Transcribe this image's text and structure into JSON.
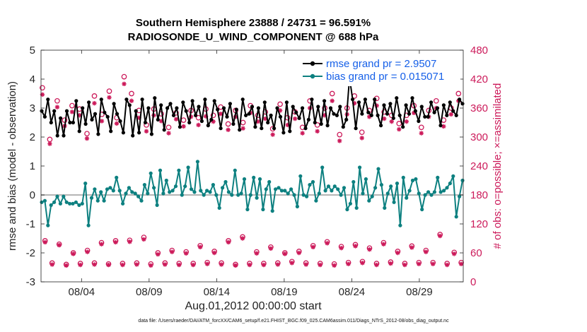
{
  "title_line1": "Southern Hemisphere 23888 / 24731 = 96.591%",
  "title_line2": "RADIOSONDE_U_WIND_COMPONENT @ 688 hPa",
  "xlabel": "Aug.01,2012 00:00:00 start",
  "footnote": "data file: /Users/raeder/DAI/ATM_forcXX/CAM6_setup/f.e21.FHIST_BGC.f09_025.CAM6assim.011/Diags_NTrS_2012-08/obs_diag_output.nc",
  "colors": {
    "rmse": "#000000",
    "bias": "#0d8080",
    "obs": "#cc1a5a",
    "zero_line": "#b5b5b5",
    "legend_text": "#1660e8"
  },
  "chart_data": {
    "type": "line",
    "ylabel_left": "rmse and bias (model - observation)",
    "ylabel_right": "# of obs: o=possible; ×=assimilated",
    "ylim_left": [
      -3,
      5
    ],
    "ylim_right": [
      0,
      480
    ],
    "yticks_left": [
      "-3",
      "-2",
      "-1",
      "0",
      "1",
      "2",
      "3",
      "4",
      "5"
    ],
    "yticks_right": [
      "0",
      "60",
      "120",
      "180",
      "240",
      "300",
      "360",
      "420",
      "480"
    ],
    "xlim": [
      0,
      31.25
    ],
    "x_tick_positions": [
      3,
      8,
      13,
      18,
      23,
      28
    ],
    "x_tick_labels": [
      "08/04",
      "08/09",
      "08/14",
      "08/19",
      "08/24",
      "08/29"
    ],
    "legend": [
      {
        "name": "rmse grand pr = 2.9507",
        "series": "rmse"
      },
      {
        "name": "bias grand pr = 0.015071",
        "series": "bias"
      }
    ],
    "rmse": [
      2.9,
      2.7,
      3.3,
      2.5,
      2.9,
      2.05,
      2.65,
      2.05,
      2.9,
      2.5,
      2.5,
      3.25,
      2.2,
      3.0,
      2.45,
      3.2,
      2.6,
      2.8,
      2.1,
      3.3,
      2.85,
      2.7,
      2.2,
      3.15,
      2.8,
      2.55,
      2.15,
      3.3,
      3.1,
      2.05,
      2.9,
      2.15,
      3.3,
      2.5,
      3.0,
      2.1,
      3.35,
      2.6,
      3.1,
      2.25,
      3.0,
      3.15,
      2.75,
      3.0,
      2.35,
      3.2,
      2.9,
      2.5,
      3.25,
      2.75,
      3.05,
      2.55,
      3.3,
      2.4,
      2.6,
      3.25,
      2.95,
      2.3,
      3.0,
      2.7,
      3.15,
      2.45,
      2.95,
      2.25,
      3.3,
      2.75,
      2.8,
      3.05,
      2.35,
      3.0,
      2.3,
      3.2,
      2.5,
      2.75,
      2.3,
      3.0,
      2.7,
      2.15,
      3.2,
      2.2,
      3.05,
      2.85,
      2.65,
      3.0,
      2.3,
      2.6,
      3.3,
      2.5,
      3.05,
      2.45,
      3.25,
      2.4,
      3.0,
      2.8,
      2.75,
      3.05,
      2.35,
      2.6,
      4.05,
      3.3,
      2.3,
      3.2,
      2.8,
      3.3,
      2.85,
      2.75,
      3.3,
      2.75,
      2.4,
      3.1,
      2.8,
      3.15,
      2.65,
      3.35,
      2.75,
      2.35,
      3.1,
      2.8,
      3.35,
      2.9,
      2.55,
      3.05,
      2.7,
      2.7,
      3.2,
      2.85,
      3.0,
      2.4,
      3.1,
      2.75,
      3.2,
      2.9,
      2.75,
      3.3,
      3.15
    ],
    "bias": [
      -0.25,
      -0.2,
      -1.05,
      -0.35,
      -0.25,
      -0.05,
      -0.3,
      -0.05,
      -0.25,
      -0.3,
      -0.3,
      -0.25,
      -0.35,
      -0.3,
      0.4,
      -1.05,
      -0.1,
      0.2,
      -0.2,
      0.1,
      -0.2,
      0.2,
      0.25,
      0.15,
      0.6,
      0.15,
      -0.3,
      0.05,
      0.25,
      0.1,
      0.05,
      -0.05,
      -0.2,
      0.35,
      0.05,
      0.75,
      0.25,
      -0.35,
      0.85,
      0.05,
      0.5,
      0.1,
      0.15,
      0.3,
      0.85,
      0.0,
      0.3,
      0.95,
      0.2,
      0.1,
      1.15,
      0.15,
      0.0,
      0.15,
      0.1,
      0.35,
      0.0,
      -0.45,
      0.25,
      0.45,
      0.1,
      0.0,
      0.85,
      0.0,
      0.05,
      0.55,
      -0.5,
      0.0,
      0.6,
      -0.1,
      0.55,
      -0.5,
      0.2,
      0.45,
      -0.55,
      0.2,
      0.25,
      0.15,
      0.15,
      0.05,
      0.2,
      0.0,
      -0.4,
      0.65,
      0.0,
      -0.05,
      0.35,
      0.45,
      -0.2,
      0.05,
      0.95,
      0.15,
      0.3,
      0.15,
      0.3,
      0.2,
      0.0,
      0.25,
      -0.5,
      -0.3,
      0.45,
      -0.45,
      0.95,
      0.05,
      0.55,
      -0.2,
      -0.05,
      0.25,
      0.9,
      0.35,
      -0.45,
      0.05,
      0.3,
      -0.25,
      0.4,
      -1.05,
      0.6,
      -0.1,
      0.15,
      0.5,
      0.55,
      0.05,
      -0.5,
      0.0,
      0.1,
      0.0,
      0.1,
      0.6,
      0.1,
      0.15,
      0.25,
      0.4,
      0.65,
      -0.75,
      -0.05,
      0.5
    ],
    "obs_possible_high": [
      402,
      295,
      375,
      335,
      365,
      358,
      307,
      385,
      347,
      395,
      340,
      425,
      390,
      355,
      325,
      358,
      348,
      320,
      350,
      335,
      355,
      340,
      358,
      345,
      362,
      327,
      355,
      330,
      365,
      345,
      352,
      317,
      368,
      340,
      352,
      320,
      375,
      325,
      360,
      390,
      305,
      360,
      385,
      310,
      355,
      380,
      352,
      345,
      328,
      345,
      365,
      320,
      355,
      375,
      335,
      360,
      390
    ],
    "obs_assim_high": [
      388,
      286,
      362,
      323,
      352,
      345,
      297,
      370,
      333,
      382,
      328,
      410,
      375,
      340,
      312,
      345,
      333,
      308,
      337,
      322,
      342,
      325,
      343,
      332,
      348,
      315,
      342,
      318,
      350,
      332,
      338,
      305,
      355,
      325,
      338,
      308,
      360,
      312,
      345,
      375,
      292,
      347,
      370,
      298,
      342,
      365,
      338,
      332,
      316,
      332,
      350,
      308,
      342,
      360,
      322,
      347,
      375
    ],
    "obs_possible_low": [
      85,
      39,
      78,
      36,
      60,
      38,
      65,
      39,
      81,
      37,
      85,
      38,
      86,
      39,
      92,
      37,
      60,
      39,
      65,
      38,
      62,
      38,
      75,
      40,
      63,
      39,
      85,
      36,
      93,
      38,
      62,
      38,
      72,
      39,
      60,
      42,
      63,
      39,
      75,
      38,
      83,
      37,
      73,
      40,
      77,
      42,
      70,
      38,
      81,
      41,
      63,
      38,
      74,
      40,
      65,
      40,
      98,
      38,
      61,
      40
    ],
    "obs_assim_low": [
      82,
      36,
      76,
      34,
      58,
      35,
      62,
      36,
      78,
      35,
      82,
      35,
      83,
      36,
      88,
      34,
      57,
      36,
      62,
      35,
      59,
      35,
      72,
      37,
      60,
      36,
      82,
      34,
      90,
      35,
      59,
      35,
      69,
      36,
      58,
      39,
      60,
      36,
      72,
      35,
      80,
      34,
      70,
      37,
      74,
      39,
      67,
      35,
      78,
      38,
      60,
      35,
      71,
      37,
      62,
      37,
      95,
      35,
      58,
      37
    ]
  }
}
